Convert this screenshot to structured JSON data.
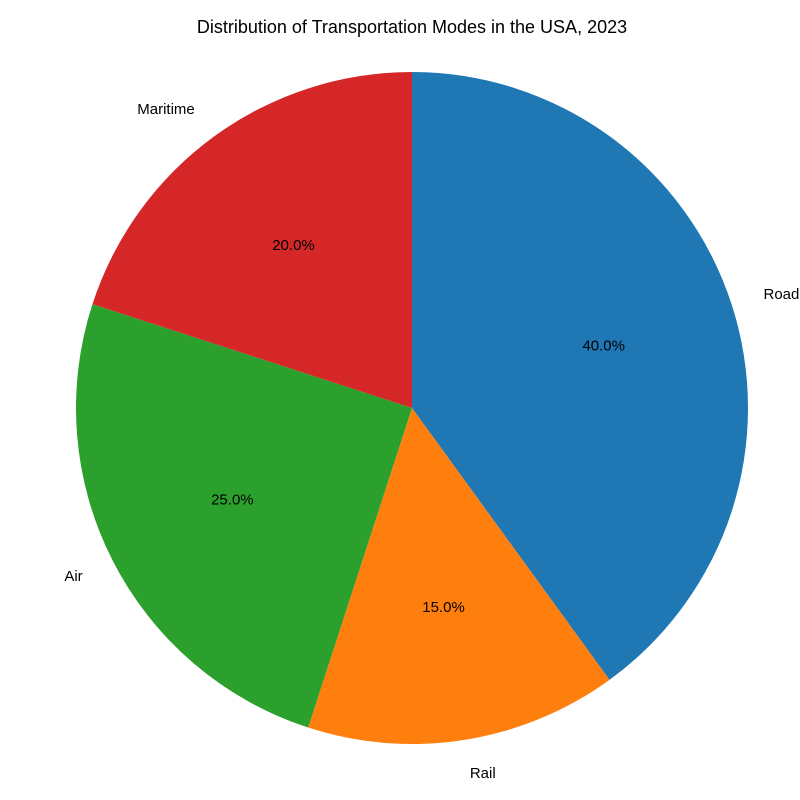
{
  "chart_data": {
    "type": "pie",
    "title": "Distribution of Transportation Modes in the USA, 2023",
    "categories": [
      "Road",
      "Rail",
      "Air",
      "Maritime"
    ],
    "values": [
      40,
      15,
      25,
      20
    ],
    "percent_labels": [
      "40.0%",
      "15.0%",
      "25.0%",
      "20.0%"
    ],
    "colors": [
      "#1f77b4",
      "#ff7f0e",
      "#2ca02c",
      "#d62728"
    ],
    "start_angle_deg": 90,
    "direction": "clockwise",
    "legend": "none"
  }
}
